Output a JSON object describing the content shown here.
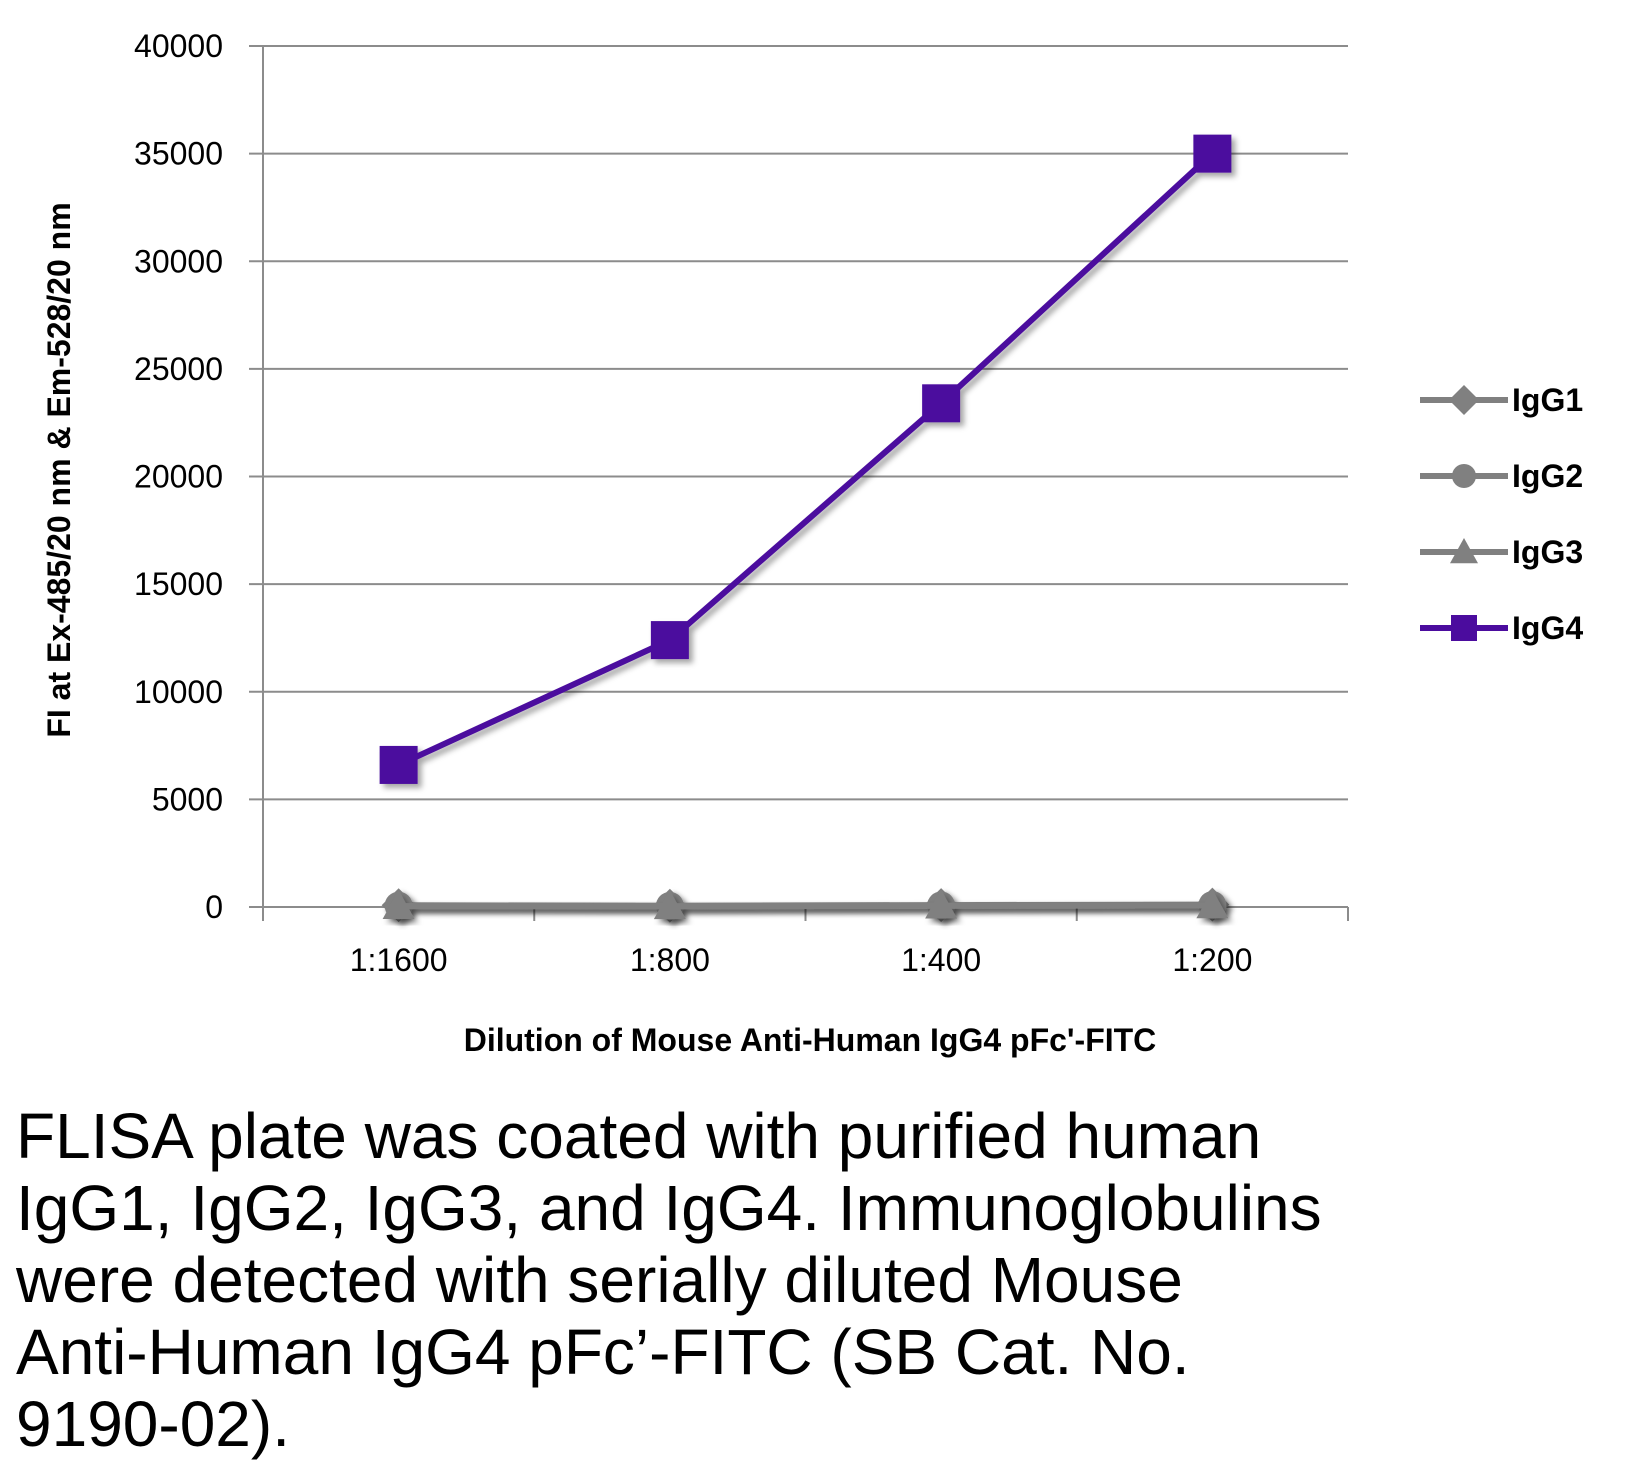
{
  "chart_data": {
    "type": "line",
    "title": "",
    "xlabel": "Dilution of Mouse Anti-Human IgG4 pFc'-FITC",
    "ylabel": "FI at Ex-485/20 nm & Em-528/20 nm",
    "categories": [
      "1:1600",
      "1:800",
      "1:400",
      "1:200"
    ],
    "ylim": [
      0,
      40000
    ],
    "yticks": [
      0,
      5000,
      10000,
      15000,
      20000,
      25000,
      30000,
      35000,
      40000
    ],
    "grid": true,
    "legend_position": "right",
    "series": [
      {
        "name": "IgG1",
        "marker": "diamond",
        "color": "#808080",
        "values": [
          80,
          60,
          90,
          110
        ]
      },
      {
        "name": "IgG2",
        "marker": "circle",
        "color": "#808080",
        "values": [
          60,
          50,
          70,
          90
        ]
      },
      {
        "name": "IgG3",
        "marker": "triangle",
        "color": "#808080",
        "values": [
          40,
          30,
          60,
          70
        ]
      },
      {
        "name": "IgG4",
        "marker": "square",
        "color": "#4B0C9E",
        "values": [
          6600,
          12400,
          23400,
          35000
        ]
      }
    ]
  },
  "caption": {
    "lines": [
      "FLISA plate was coated with purified human",
      "IgG1, IgG2, IgG3, and IgG4.  Immunoglobulins",
      "were detected with serially diluted Mouse",
      "Anti-Human IgG4 pFc’-FITC (SB Cat. No.",
      "9190-02)."
    ]
  }
}
